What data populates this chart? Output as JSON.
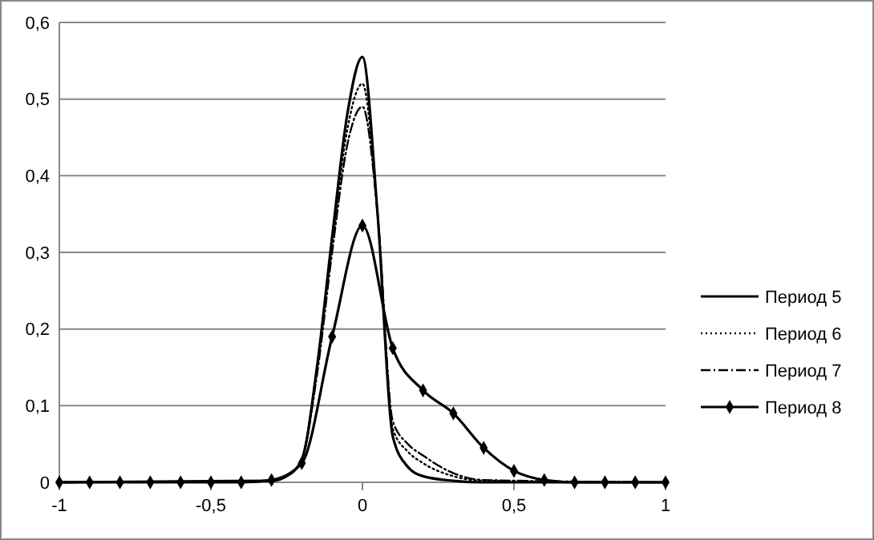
{
  "chart_data": {
    "type": "line",
    "xlim": [
      -1,
      1
    ],
    "ylim": [
      0,
      0.6
    ],
    "xticks": [
      {
        "value": -1,
        "label": "-1"
      },
      {
        "value": -0.5,
        "label": "-0,5"
      },
      {
        "value": 0,
        "label": "0"
      },
      {
        "value": 0.5,
        "label": "0,5"
      },
      {
        "value": 1,
        "label": "1"
      }
    ],
    "yticks": [
      {
        "value": 0,
        "label": "0"
      },
      {
        "value": 0.1,
        "label": "0,1"
      },
      {
        "value": 0.2,
        "label": "0,2"
      },
      {
        "value": 0.3,
        "label": "0,3"
      },
      {
        "value": 0.4,
        "label": "0,4"
      },
      {
        "value": 0.5,
        "label": "0,5"
      },
      {
        "value": 0.6,
        "label": "0,6"
      }
    ],
    "grid": "y",
    "legend": "right",
    "series": [
      {
        "name": "Период 5",
        "color": "#000000",
        "line_style": "solid",
        "marker": "none",
        "x": [
          -1,
          -0.3,
          -0.25,
          -0.2,
          -0.15,
          -0.1,
          -0.05,
          0,
          0.05,
          0.1,
          0.15,
          0.2,
          0.3,
          0.4,
          1
        ],
        "values": [
          0,
          0.002,
          0.008,
          0.03,
          0.15,
          0.32,
          0.48,
          0.555,
          0.35,
          0.06,
          0.02,
          0.008,
          0.002,
          0,
          0
        ]
      },
      {
        "name": "Период 6",
        "color": "#000000",
        "line_style": "dotted",
        "marker": "none",
        "x": [
          -1,
          -0.3,
          -0.25,
          -0.2,
          -0.15,
          -0.1,
          -0.05,
          0,
          0.05,
          0.1,
          0.15,
          0.2,
          0.3,
          0.4,
          1
        ],
        "values": [
          0,
          0.002,
          0.008,
          0.03,
          0.15,
          0.31,
          0.46,
          0.52,
          0.35,
          0.07,
          0.04,
          0.025,
          0.008,
          0.002,
          0
        ]
      },
      {
        "name": "Период 7",
        "color": "#000000",
        "line_style": "dashdot",
        "marker": "none",
        "x": [
          -1,
          -0.3,
          -0.25,
          -0.2,
          -0.15,
          -0.1,
          -0.05,
          0,
          0.05,
          0.1,
          0.15,
          0.2,
          0.3,
          0.4,
          1
        ],
        "values": [
          0,
          0.002,
          0.008,
          0.03,
          0.14,
          0.3,
          0.44,
          0.49,
          0.35,
          0.08,
          0.05,
          0.035,
          0.012,
          0.003,
          0
        ]
      },
      {
        "name": "Период 8",
        "color": "#000000",
        "line_style": "solid",
        "marker": "diamond",
        "x": [
          -1,
          -0.9,
          -0.8,
          -0.7,
          -0.6,
          -0.5,
          -0.4,
          -0.3,
          -0.2,
          -0.1,
          0,
          0.1,
          0.2,
          0.3,
          0.4,
          0.5,
          0.6,
          0.7,
          0.8,
          0.9,
          1
        ],
        "values": [
          0,
          0,
          0,
          0,
          0,
          0,
          0,
          0.003,
          0.025,
          0.19,
          0.335,
          0.175,
          0.12,
          0.09,
          0.045,
          0.015,
          0.003,
          0,
          0,
          0,
          0
        ]
      }
    ]
  }
}
